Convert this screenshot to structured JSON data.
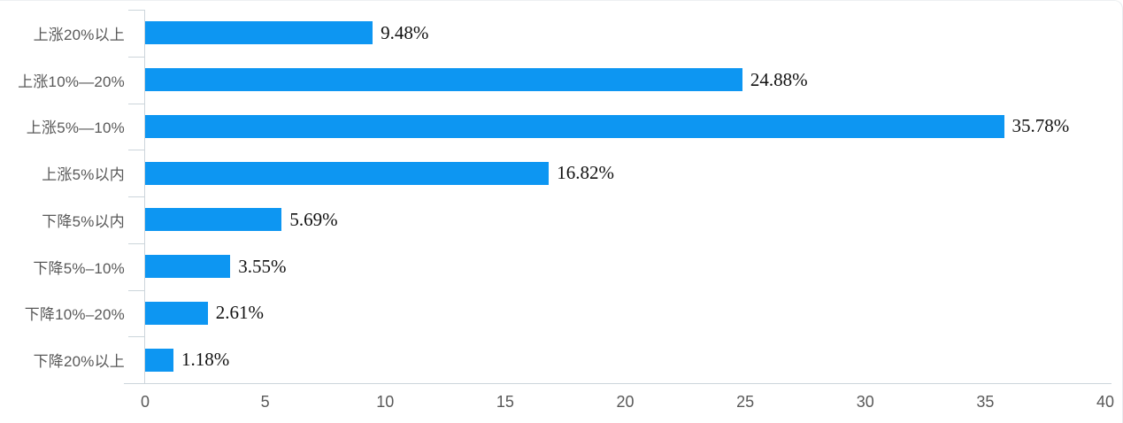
{
  "figure": {
    "background": "#ffffff",
    "border_color": "#e7ebee"
  },
  "chart_data": {
    "type": "bar",
    "orientation": "horizontal",
    "title": "",
    "xlabel": "",
    "ylabel": "",
    "categories": [
      "上涨20%以上",
      "上涨10%—20%",
      "上涨5%—10%",
      "上涨5%以内",
      "下降5%以内",
      "下降5%–10%",
      "下降10%–20%",
      "下降20%以上"
    ],
    "values": [
      9.48,
      24.88,
      35.78,
      16.82,
      5.69,
      3.55,
      2.61,
      1.18
    ],
    "value_labels": [
      "9.48%",
      "24.88%",
      "35.78%",
      "16.82%",
      "5.69%",
      "3.55%",
      "2.61%",
      "1.18%"
    ],
    "x_ticks": [
      0,
      5,
      10,
      15,
      20,
      25,
      30,
      35,
      40
    ],
    "xlim": [
      0,
      40
    ],
    "grid": false,
    "legend_position": "none",
    "bar_color": "#0d96f2",
    "axis_color": "#ccd5db",
    "category_label_color": "#595959",
    "x_tick_label_color": "#595959",
    "value_label_color": "#111111"
  }
}
